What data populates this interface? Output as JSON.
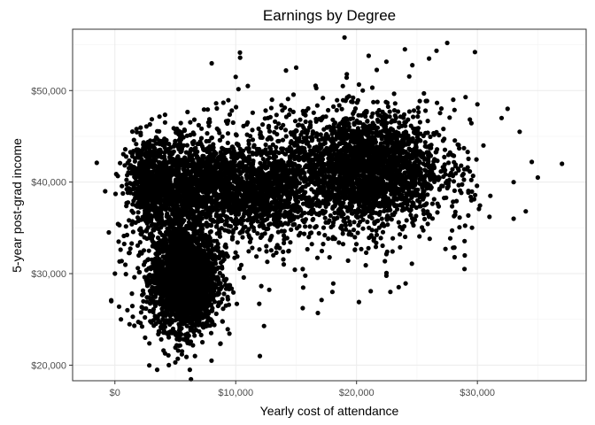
{
  "chart_data": {
    "type": "scatter",
    "title": "Earnings by Degree",
    "xlabel": "Yearly cost of attendance",
    "ylabel": "5-year post-grad income",
    "xlim": [
      -3500,
      39000
    ],
    "ylim": [
      18300,
      56700
    ],
    "x_ticks": [
      0,
      10000,
      20000,
      30000
    ],
    "x_tick_labels": [
      "$0",
      "$10,000",
      "$20,000",
      "$30,000"
    ],
    "y_ticks": [
      20000,
      30000,
      40000,
      50000
    ],
    "y_tick_labels": [
      "$20,000",
      "$30,000",
      "$40,000",
      "$50,000"
    ],
    "grid": true,
    "legend": "none",
    "point_color": "#000000",
    "clusters": [
      {
        "description": "dense low-cost cluster",
        "x_range": [
          2500,
          9000
        ],
        "y_range": [
          22500,
          36000
        ],
        "center": [
          5800,
          29500
        ]
      },
      {
        "description": "dense mid band",
        "x_range": [
          2000,
          15000
        ],
        "y_range": [
          35000,
          45000
        ],
        "center": [
          7000,
          40000
        ]
      },
      {
        "description": "high-cost cluster",
        "x_range": [
          14000,
          29000
        ],
        "y_range": [
          33000,
          50000
        ],
        "center": [
          20500,
          41500
        ]
      }
    ],
    "points": [
      [
        -1500,
        42100
      ],
      [
        37000,
        42000
      ],
      [
        34500,
        42200
      ],
      [
        33500,
        45500
      ],
      [
        34000,
        36800
      ],
      [
        30500,
        44000
      ],
      [
        32000,
        47000
      ],
      [
        31000,
        36200
      ],
      [
        33000,
        36000
      ],
      [
        29500,
        38000
      ],
      [
        19000,
        55800
      ],
      [
        24000,
        54500
      ],
      [
        27500,
        55200
      ],
      [
        26000,
        53500
      ],
      [
        21000,
        53800
      ],
      [
        16800,
        25700
      ],
      [
        20200,
        26900
      ],
      [
        22800,
        28000
      ],
      [
        18000,
        28000
      ],
      [
        12000,
        21000
      ],
      [
        3500,
        19500
      ],
      [
        6200,
        19500
      ],
      [
        8000,
        20500
      ],
      [
        5000,
        20300
      ],
      [
        2500,
        23000
      ],
      [
        -800,
        39000
      ],
      [
        -500,
        34500
      ],
      [
        0,
        30000
      ],
      [
        -300,
        27000
      ],
      [
        500,
        25000
      ],
      [
        29800,
        54200
      ],
      [
        30000,
        48500
      ],
      [
        28000,
        49000
      ],
      [
        10000,
        51500
      ],
      [
        11000,
        50500
      ],
      [
        15000,
        52500
      ],
      [
        13000,
        49000
      ],
      [
        32500,
        48000
      ],
      [
        33000,
        40000
      ],
      [
        35000,
        40500
      ]
    ]
  }
}
